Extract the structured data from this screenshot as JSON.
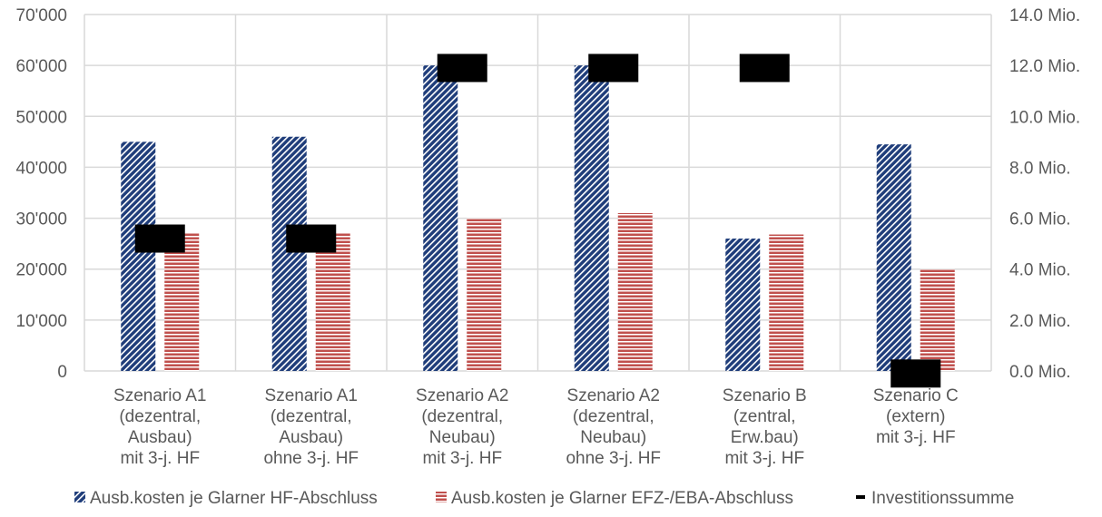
{
  "chart_data": {
    "type": "bar",
    "categories": [
      [
        "Szenario A1",
        "(dezentral,",
        "Ausbau)",
        "mit 3-j. HF"
      ],
      [
        "Szenario A1",
        "(dezentral,",
        "Ausbau)",
        "ohne 3-j. HF"
      ],
      [
        "Szenario A2",
        "(dezentral,",
        "Neubau)",
        "mit 3-j. HF"
      ],
      [
        "Szenario A2",
        "(dezentral,",
        "Neubau)",
        "ohne 3-j. HF"
      ],
      [
        "Szenario B",
        "(zentral,",
        "Erw.bau)",
        "mit 3-j. HF"
      ],
      [
        "Szenario C",
        "(extern)",
        "mit 3-j. HF"
      ]
    ],
    "series": [
      {
        "name": "Ausb.kosten je Glarner HF-Abschluss",
        "axis": "left",
        "kind": "bar",
        "color": "#1F3D7A",
        "values": [
          45000,
          46000,
          60000,
          60000,
          26000,
          44500
        ]
      },
      {
        "name": "Ausb.kosten je Glarner EFZ-/EBA-Abschluss",
        "axis": "left",
        "kind": "bar",
        "color": "#C0504D",
        "values": [
          27000,
          27000,
          30000,
          31000,
          26800,
          20000
        ]
      },
      {
        "name": "Investitionssumme",
        "axis": "right",
        "kind": "marker",
        "color": "#000000",
        "values": [
          5.2,
          5.2,
          11.9,
          11.9,
          11.9,
          -0.1
        ]
      }
    ],
    "y_left": {
      "min": 0,
      "max": 70000,
      "step": 10000,
      "tick_labels": [
        "0",
        "10'000",
        "20'000",
        "30'000",
        "40'000",
        "50'000",
        "60'000",
        "70'000"
      ]
    },
    "y_right": {
      "min": 0,
      "max": 14,
      "step": 2,
      "tick_labels": [
        "0.0 Mio.",
        "2.0 Mio.",
        "4.0 Mio.",
        "6.0 Mio.",
        "8.0 Mio.",
        "10.0 Mio.",
        "12.0 Mio.",
        "14.0 Mio."
      ]
    },
    "grid": true,
    "legend_position": "bottom"
  }
}
